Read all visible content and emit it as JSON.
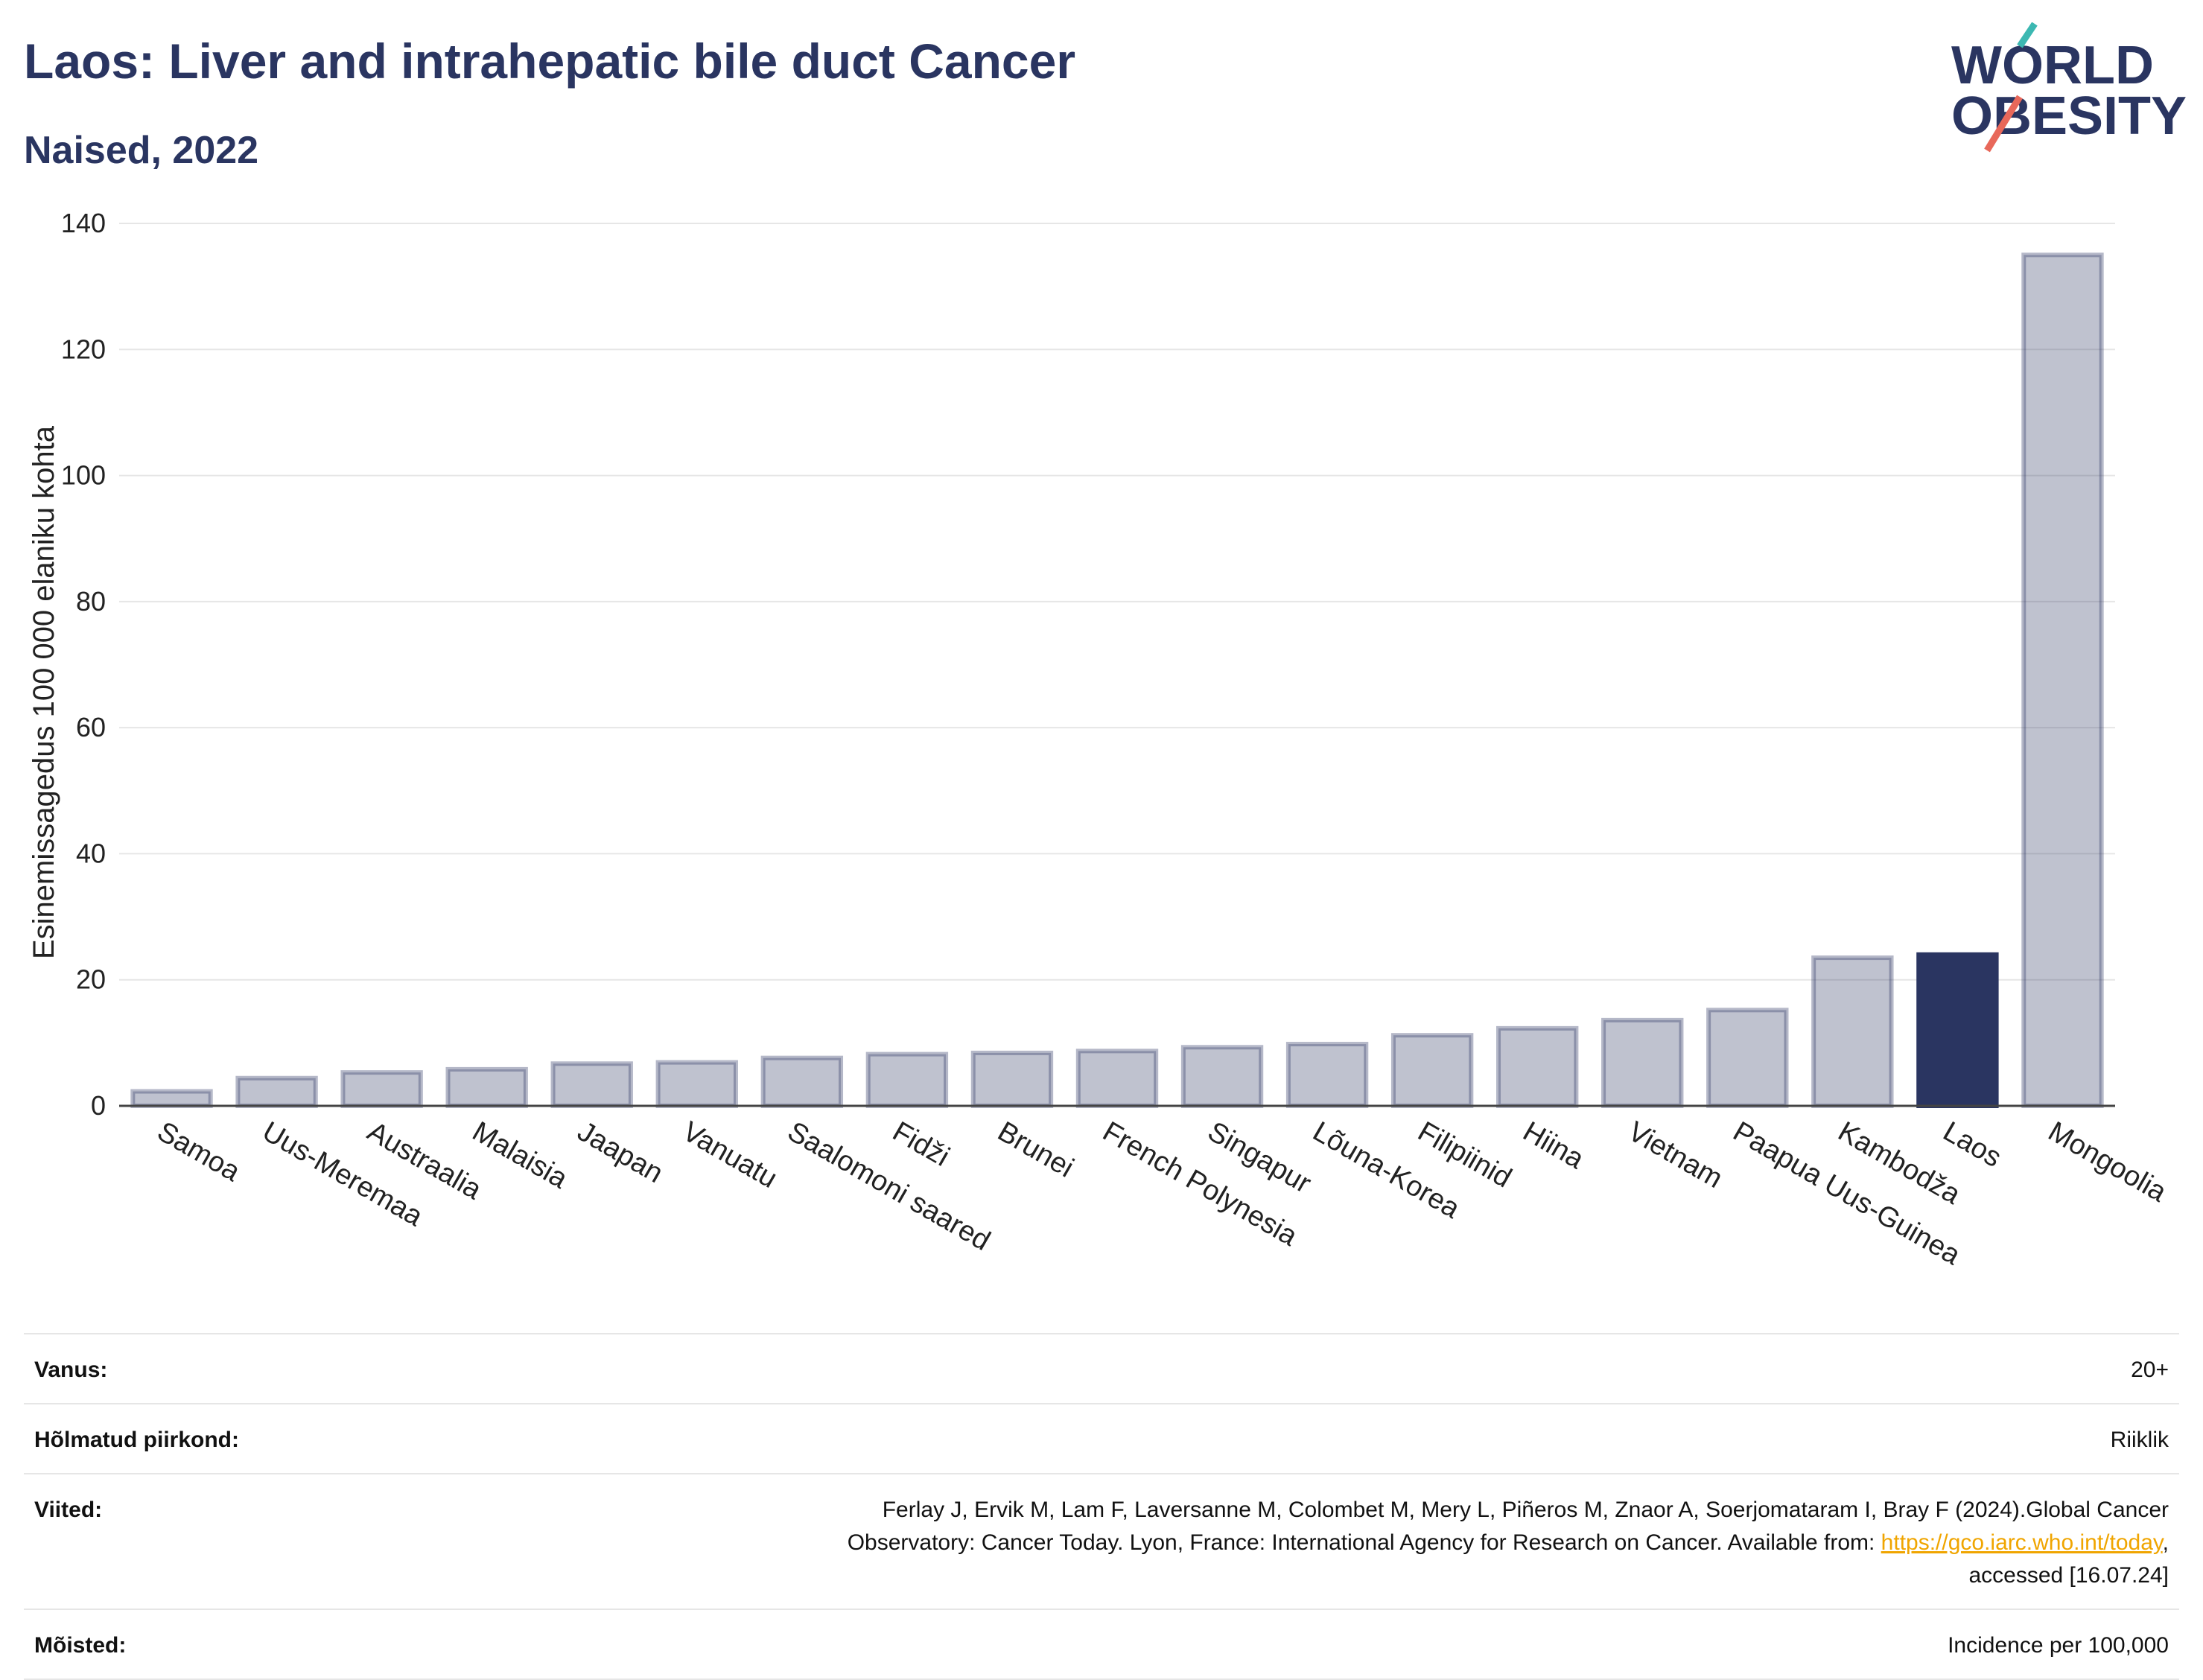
{
  "header": {
    "title": "Laos: Liver and intrahepatic bile duct Cancer",
    "subtitle": "Naised, 2022"
  },
  "logo": {
    "line1": "WORLD",
    "line2": "OBESITY",
    "slash_colors": [
      "#3cb8b2",
      "#e8685a"
    ]
  },
  "colors": {
    "bar_default": "#2a3561",
    "bar_highlight": "#2a3561",
    "bar_default_opacity": 0.3,
    "text_primary": "#2a3561",
    "link": "#f0a500"
  },
  "chart_data": {
    "type": "bar",
    "ylabel": "Esinemissagedus 100 000 elaniku kohta",
    "xlabel": "",
    "ylim": [
      0,
      140
    ],
    "yticks": [
      0,
      20,
      40,
      60,
      80,
      100,
      120,
      140
    ],
    "grid": true,
    "highlight": "Laos",
    "categories": [
      "Samoa",
      "Uus-Meremaa",
      "Austraalia",
      "Malaisia",
      "Jaapan",
      "Vanuatu",
      "Saalomoni saared",
      "Fidži",
      "Brunei",
      "French Polynesia",
      "Singapur",
      "Lõuna-Korea",
      "Filipiinid",
      "Hiina",
      "Vietnam",
      "Paapua Uus-Guinea",
      "Kambodža",
      "Laos",
      "Mongoolia"
    ],
    "values": [
      2.3,
      4.4,
      5.3,
      5.8,
      6.7,
      6.9,
      7.6,
      8.2,
      8.4,
      8.7,
      9.3,
      9.8,
      11.2,
      12.3,
      13.6,
      15.2,
      23.5,
      24.0,
      135.0
    ]
  },
  "info": {
    "age": {
      "label": "Vanus:",
      "value": "20+"
    },
    "area": {
      "label": "Hõlmatud piirkond:",
      "value": "Riiklik"
    },
    "refs": {
      "label": "Viited:",
      "line1": "Ferlay J, Ervik M, Lam F, Laversanne M, Colombet M, Mery L, Piñeros M, Znaor A, Soerjomataram I, Bray F (2024).Global Cancer",
      "line2": "Observatory: Cancer Today. Lyon, France: International Agency for Research on Cancer. Available from:",
      "link": "https://gco.iarc.who.int/today",
      "line3": "accessed [16.07.24]"
    },
    "defs": {
      "label": "Mõisted:",
      "value": "Incidence per 100,000"
    }
  }
}
